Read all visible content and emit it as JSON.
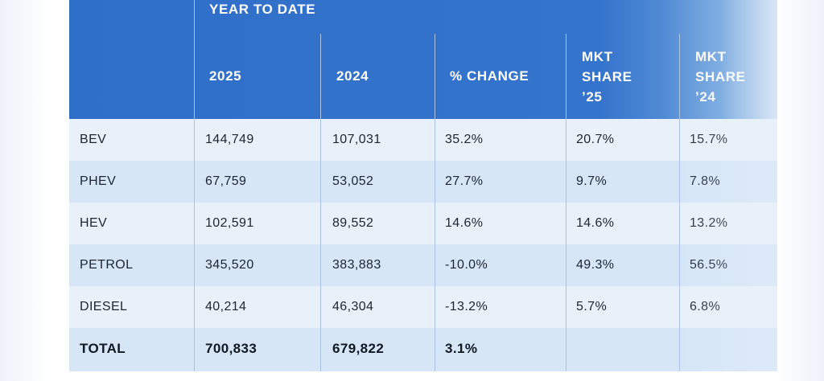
{
  "table": {
    "group_header": "YEAR TO DATE",
    "columns": [
      "2025",
      "2024",
      "% CHANGE",
      "MKT\nSHARE\n’25",
      "MKT\nSHARE\n’24"
    ],
    "rows": [
      {
        "label": "BEV",
        "values": [
          "144,749",
          "107,031",
          "35.2%",
          "20.7%",
          "15.7%"
        ]
      },
      {
        "label": "PHEV",
        "values": [
          "67,759",
          "53,052",
          "27.7%",
          "9.7%",
          "7.8%"
        ]
      },
      {
        "label": "HEV",
        "values": [
          "102,591",
          "89,552",
          "14.6%",
          "14.6%",
          "13.2%"
        ]
      },
      {
        "label": "PETROL",
        "values": [
          "345,520",
          "383,883",
          "-10.0%",
          "49.3%",
          "56.5%"
        ]
      },
      {
        "label": "DIESEL",
        "values": [
          "40,214",
          "46,304",
          "-13.2%",
          "5.7%",
          "6.8%"
        ]
      },
      {
        "label": "TOTAL",
        "values": [
          "700,833",
          "679,822",
          "3.1%",
          "",
          ""
        ]
      }
    ]
  },
  "colors": {
    "header_blue": "#3474cc",
    "row_alt": "#d6e6f7",
    "row_base": "#e8f0fa"
  }
}
